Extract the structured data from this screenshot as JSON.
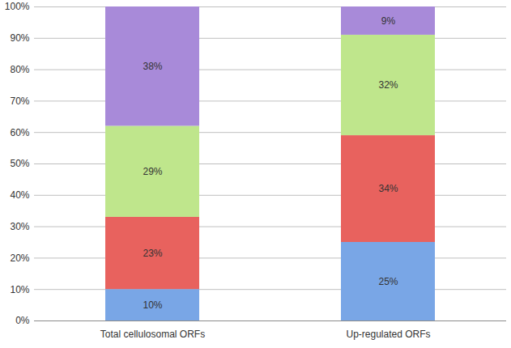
{
  "chart_data": {
    "type": "bar",
    "stacked": true,
    "grid": true,
    "data_labels": true,
    "categories": [
      "Total cellulosomal ORFs",
      "Up-regulated ORFs"
    ],
    "series": [
      {
        "color": "#79a6e6",
        "values": [
          10,
          25
        ],
        "value_labels": [
          "10%",
          "25%"
        ]
      },
      {
        "color": "#e8625e",
        "values": [
          23,
          34
        ],
        "value_labels": [
          "23%",
          "34%"
        ]
      },
      {
        "color": "#bfe68c",
        "values": [
          29,
          32
        ],
        "value_labels": [
          "29%",
          "32%"
        ]
      },
      {
        "color": "#a88ad9",
        "values": [
          38,
          9
        ],
        "value_labels": [
          "38%",
          "9%"
        ]
      }
    ],
    "ylim": [
      0,
      100
    ],
    "yticks": [
      {
        "value": 0,
        "label": "0%"
      },
      {
        "value": 10,
        "label": "10%"
      },
      {
        "value": 20,
        "label": "20%"
      },
      {
        "value": 30,
        "label": "30%"
      },
      {
        "value": 40,
        "label": "40%"
      },
      {
        "value": 50,
        "label": "50%"
      },
      {
        "value": 60,
        "label": "60%"
      },
      {
        "value": 70,
        "label": "70%"
      },
      {
        "value": 80,
        "label": "80%"
      },
      {
        "value": 90,
        "label": "90%"
      },
      {
        "value": 100,
        "label": "100%"
      }
    ]
  }
}
